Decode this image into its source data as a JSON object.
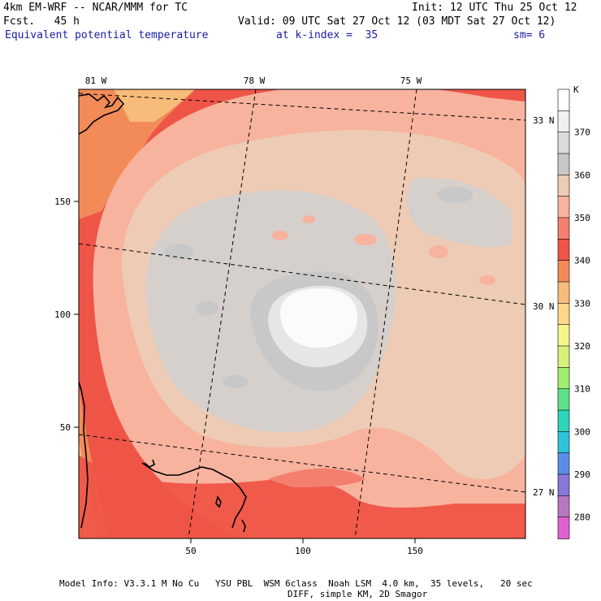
{
  "header": {
    "model_title": "4km EM-WRF -- NCAR/MMM for TC",
    "forecast": "Fcst.   45 h",
    "init": "Init: 12 UTC Thu 25 Oct 12",
    "valid": "Valid: 09 UTC Sat 27 Oct 12 (03 MDT Sat 27 Oct 12)",
    "field": "Equivalent potential temperature",
    "level": "at k-index =  35",
    "smoothing": "sm= 6"
  },
  "map": {
    "longitude_labels": [
      "81 W",
      "78 W",
      "75 W"
    ],
    "latitude_labels": [
      "33 N",
      "30 N",
      "27 N"
    ],
    "x_ticks": [
      "50",
      "100",
      "150"
    ],
    "y_ticks": [
      "150",
      "100",
      "50"
    ],
    "grid_range": {
      "x": [
        0,
        200
      ],
      "y": [
        0,
        200
      ]
    }
  },
  "colorbar": {
    "unit": "K",
    "labels": [
      "370",
      "360",
      "350",
      "340",
      "330",
      "320",
      "310",
      "300",
      "290",
      "280"
    ],
    "colors": [
      "#ffffff",
      "#f0f0f0",
      "#dcdcdc",
      "#c8c8c8",
      "#eecbb4",
      "#f7b39e",
      "#f47f6e",
      "#ee5547",
      "#f28b58",
      "#f7bb7a",
      "#fed88a",
      "#f6f68a",
      "#d8f07a",
      "#a0ee70",
      "#5ee08a",
      "#30d4b8",
      "#2ec4d8",
      "#5a8ee8",
      "#8878d8",
      "#b878c0",
      "#e060d0"
    ]
  },
  "footer": {
    "line1": "Model Info: V3.3.1 M No Cu   YSU PBL  WSM 6class  Noah LSM  4.0 km,  35 levels,   20 sec",
    "line2": "DIFF, simple KM, 2D Smagor"
  }
}
